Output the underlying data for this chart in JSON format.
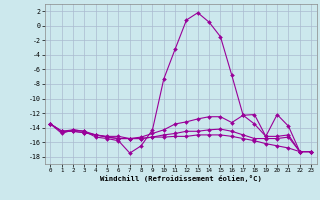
{
  "xlabel": "Windchill (Refroidissement éolien,°C)",
  "x": [
    0,
    1,
    2,
    3,
    4,
    5,
    6,
    7,
    8,
    9,
    10,
    11,
    12,
    13,
    14,
    15,
    16,
    17,
    18,
    19,
    20,
    21,
    22,
    23
  ],
  "line1": [
    -13.5,
    -14.8,
    -14.3,
    -14.5,
    -15.3,
    -15.5,
    -15.8,
    -17.5,
    -16.5,
    -14.3,
    -7.3,
    -3.2,
    0.8,
    1.8,
    0.5,
    -1.5,
    -6.8,
    -12.3,
    -13.5,
    -15.2,
    -12.2,
    -13.8,
    -17.3,
    -17.3
  ],
  "line2": [
    -13.5,
    -14.5,
    -14.3,
    -14.5,
    -15.0,
    -15.2,
    -15.2,
    -15.5,
    -15.3,
    -14.8,
    -14.3,
    -13.5,
    -13.2,
    -12.8,
    -12.5,
    -12.5,
    -13.3,
    -12.3,
    -12.2,
    -15.2,
    -15.2,
    -15.0,
    -17.3,
    -17.3
  ],
  "line3": [
    -13.5,
    -14.5,
    -14.5,
    -14.7,
    -15.0,
    -15.3,
    -15.5,
    -15.5,
    -15.5,
    -15.3,
    -15.3,
    -15.2,
    -15.2,
    -15.0,
    -15.0,
    -15.0,
    -15.2,
    -15.5,
    -15.8,
    -16.2,
    -16.5,
    -16.8,
    -17.3,
    -17.3
  ],
  "line4": [
    -13.5,
    -14.5,
    -14.5,
    -14.7,
    -15.0,
    -15.3,
    -15.5,
    -15.5,
    -15.5,
    -15.3,
    -15.0,
    -14.8,
    -14.5,
    -14.5,
    -14.3,
    -14.2,
    -14.5,
    -15.0,
    -15.5,
    -15.5,
    -15.5,
    -15.3,
    -17.3,
    -17.3
  ],
  "line_color": "#990099",
  "bg_color": "#cce8ed",
  "grid_color": "#aabbd0",
  "ylim": [
    -19,
    3
  ],
  "yticks": [
    2,
    0,
    -2,
    -4,
    -6,
    -8,
    -10,
    -12,
    -14,
    -16,
    -18
  ],
  "xticks": [
    0,
    1,
    2,
    3,
    4,
    5,
    6,
    7,
    8,
    9,
    10,
    11,
    12,
    13,
    14,
    15,
    16,
    17,
    18,
    19,
    20,
    21,
    22,
    23
  ]
}
